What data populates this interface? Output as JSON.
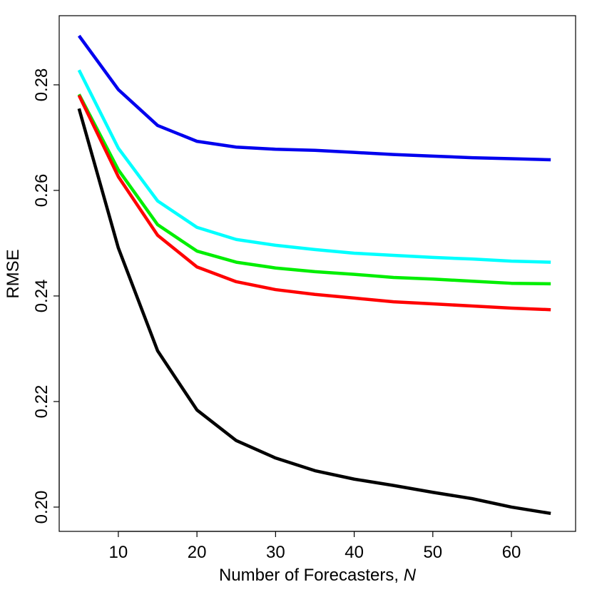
{
  "chart_data": {
    "type": "line",
    "xlabel": "Number of Forecasters,",
    "xlabel_var": "N",
    "ylabel": "RMSE",
    "x": [
      5,
      10,
      15,
      20,
      25,
      30,
      35,
      40,
      45,
      50,
      55,
      60,
      65
    ],
    "series": [
      {
        "color": "#0000ee",
        "values": [
          0.2893,
          0.2791,
          0.2723,
          0.2693,
          0.2682,
          0.2678,
          0.2676,
          0.2672,
          0.2668,
          0.2665,
          0.2662,
          0.266,
          0.2658
        ]
      },
      {
        "color": "#00ffff",
        "values": [
          0.2828,
          0.268,
          0.258,
          0.253,
          0.2507,
          0.2496,
          0.2488,
          0.2481,
          0.2477,
          0.2473,
          0.247,
          0.2466,
          0.2464
        ]
      },
      {
        "color": "#00ee00",
        "values": [
          0.2782,
          0.2639,
          0.2535,
          0.2485,
          0.2464,
          0.2453,
          0.2446,
          0.2441,
          0.2435,
          0.2432,
          0.2428,
          0.2424,
          0.2423
        ]
      },
      {
        "color": "#ff0000",
        "values": [
          0.278,
          0.2626,
          0.2515,
          0.2455,
          0.2427,
          0.2412,
          0.2403,
          0.2396,
          0.2389,
          0.2385,
          0.2381,
          0.2377,
          0.2374
        ]
      },
      {
        "color": "#000000",
        "values": [
          0.2755,
          0.2491,
          0.2296,
          0.2184,
          0.2126,
          0.2093,
          0.2069,
          0.2053,
          0.2041,
          0.2028,
          0.2016,
          0.2,
          0.1988
        ]
      }
    ],
    "xlim": [
      2.48,
      68.16
    ],
    "ylim": [
      0.1954,
      0.2931
    ],
    "xticks": [
      10,
      20,
      30,
      40,
      50,
      60
    ],
    "yticks": [
      {
        "value": 0.2,
        "label": "0.20"
      },
      {
        "value": 0.22,
        "label": "0.22"
      },
      {
        "value": 0.24,
        "label": "0.24"
      },
      {
        "value": 0.26,
        "label": "0.26"
      },
      {
        "value": 0.28,
        "label": "0.28"
      }
    ],
    "grid": false
  }
}
